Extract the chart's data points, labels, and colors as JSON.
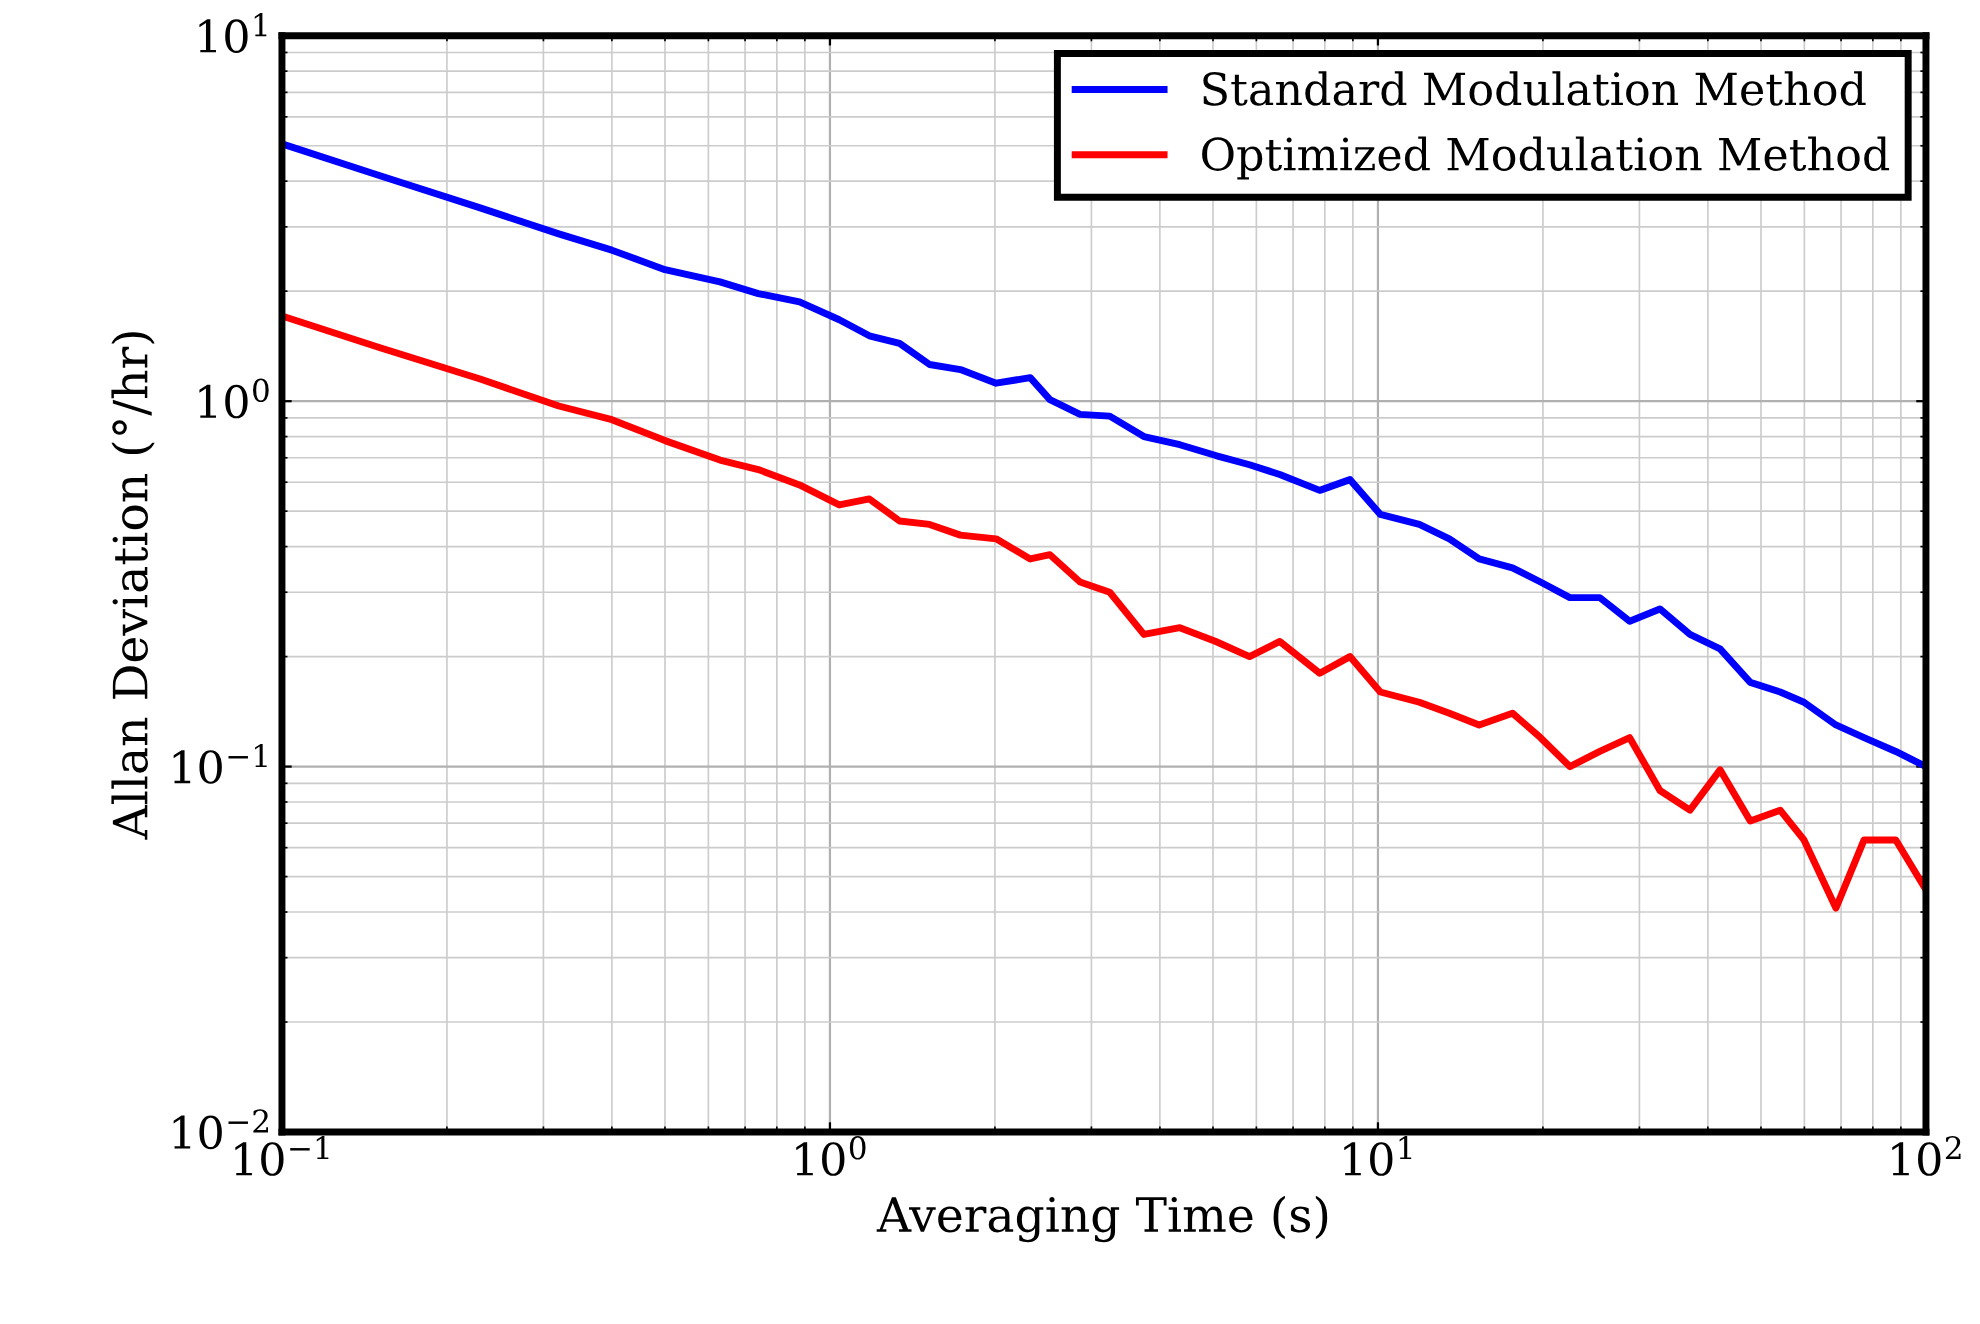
{
  "chart_data": {
    "type": "line",
    "xlabel": "Averaging Time (s)",
    "ylabel": "Allan Deviation (°/hr)",
    "log": "xy",
    "grid": true,
    "legend": "top right",
    "xlim": [
      0.1,
      100
    ],
    "ylim": [
      0.01,
      10
    ],
    "xticks": [
      {
        "value": 0.1,
        "label": "10$^{−1}$"
      },
      {
        "value": 1,
        "label": "10$^{0}$"
      },
      {
        "value": 10,
        "label": "10$^{1}$"
      },
      {
        "value": 100,
        "label": "10$^{2}$"
      }
    ],
    "yticks": [
      {
        "value": 0.01,
        "label": "10$^{−2}$"
      },
      {
        "value": 0.1,
        "label": "10$^{−1}$"
      },
      {
        "value": 1,
        "label": "10$^{0}$"
      },
      {
        "value": 10,
        "label": "10$^{1}$"
      }
    ],
    "x": [
      0.1,
      0.151,
      0.23,
      0.32,
      0.4,
      0.5,
      0.63,
      0.74,
      0.88,
      1.04,
      1.18,
      1.34,
      1.52,
      1.73,
      2.01,
      2.32,
      2.52,
      2.86,
      3.24,
      3.74,
      4.35,
      5.06,
      5.83,
      6.62,
      7.83,
      8.89,
      10.1,
      11.9,
      13.5,
      15.3,
      17.6,
      19.8,
      22.4,
      25.4,
      28.8,
      32.7,
      37.1,
      42.1,
      47.8,
      54.2,
      59.9,
      68.5,
      77.1,
      88.1,
      100
    ],
    "series": [
      {
        "name": "Standard Modulation Method",
        "color": "#0000ff",
        "values": [
          5.06,
          4.14,
          3.38,
          2.87,
          2.59,
          2.29,
          2.12,
          1.97,
          1.87,
          1.67,
          1.51,
          1.44,
          1.26,
          1.22,
          1.12,
          1.16,
          1.01,
          0.92,
          0.91,
          0.8,
          0.76,
          0.71,
          0.67,
          0.63,
          0.57,
          0.61,
          0.49,
          0.46,
          0.42,
          0.37,
          0.35,
          0.32,
          0.29,
          0.29,
          0.25,
          0.27,
          0.23,
          0.21,
          0.17,
          0.16,
          0.15,
          0.13,
          0.12,
          0.11,
          0.1
        ]
      },
      {
        "name": "Optimized Modulation Method",
        "color": "#ff0000",
        "values": [
          1.71,
          1.4,
          1.15,
          0.97,
          0.89,
          0.78,
          0.69,
          0.65,
          0.59,
          0.52,
          0.54,
          0.47,
          0.46,
          0.43,
          0.42,
          0.37,
          0.38,
          0.32,
          0.3,
          0.23,
          0.24,
          0.22,
          0.2,
          0.22,
          0.18,
          0.2,
          0.16,
          0.15,
          0.14,
          0.13,
          0.14,
          0.12,
          0.1,
          0.11,
          0.12,
          0.086,
          0.076,
          0.098,
          0.071,
          0.076,
          0.063,
          0.041,
          0.063,
          0.063,
          0.046
        ]
      }
    ]
  }
}
